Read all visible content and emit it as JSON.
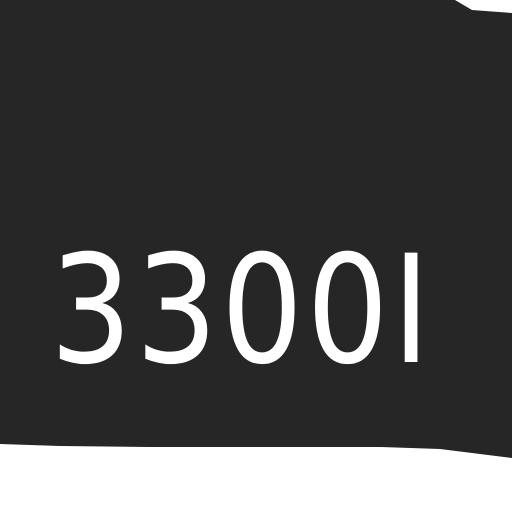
{
  "panel": {
    "background_color": "#262626",
    "text_color": "#ffffff",
    "page_color": "#ffffff"
  },
  "code": {
    "text": "3300I"
  }
}
